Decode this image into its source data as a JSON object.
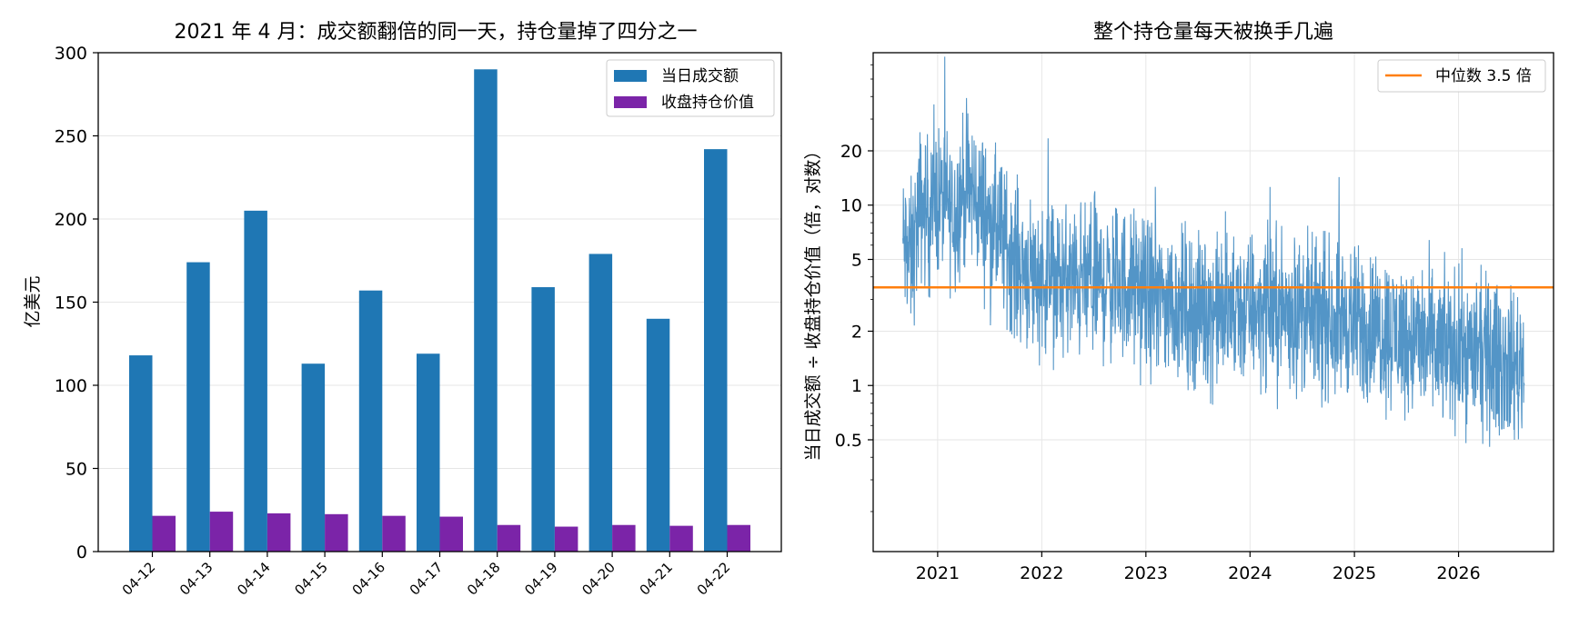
{
  "chart_data": [
    {
      "type": "bar",
      "title": "2021 年 4 月：成交额翻倍的同一天，持仓量掉了四分之一",
      "xlabel": "",
      "ylabel": "亿美元",
      "ylim": [
        0,
        300
      ],
      "yticks": [
        0,
        50,
        100,
        150,
        200,
        250,
        300
      ],
      "categories": [
        "04-12",
        "04-13",
        "04-14",
        "04-15",
        "04-16",
        "04-17",
        "04-18",
        "04-19",
        "04-20",
        "04-21",
        "04-22"
      ],
      "series": [
        {
          "name": "当日成交额",
          "color": "#1f77b4",
          "values": [
            118,
            174,
            205,
            113,
            157,
            119,
            290,
            159,
            179,
            140,
            242
          ]
        },
        {
          "name": "收盘持仓价值",
          "color": "#7b24a8",
          "values": [
            21.5,
            24,
            23,
            22.5,
            21.5,
            21,
            16,
            15,
            16,
            15.5,
            16
          ]
        }
      ],
      "legend": "top-right",
      "grid": "y"
    },
    {
      "type": "line",
      "title": "整个持仓量每天被换手几遍",
      "xlabel": "",
      "ylabel": "当日成交额 ÷ 收盘持仓价值（倍，对数）",
      "yscale": "log",
      "ylim": [
        0.12,
        70
      ],
      "yticks": [
        0.5,
        1,
        2,
        5,
        10,
        20
      ],
      "ytick_labels": [
        "0.5",
        "1",
        "2",
        "5",
        "10",
        "20"
      ],
      "xlim": [
        "2020-05-20",
        "2026-11-30"
      ],
      "xticks": [
        "2021",
        "2022",
        "2023",
        "2024",
        "2025",
        "2026"
      ],
      "series": [
        {
          "name": "",
          "color": "#4a8fc4",
          "points": [
            [
              "2020-09-01",
              6
            ],
            [
              "2020-10-01",
              5
            ],
            [
              "2020-11-01",
              10
            ],
            [
              "2020-12-01",
              9
            ],
            [
              "2021-01-01",
              11
            ],
            [
              "2021-02-01",
              10
            ],
            [
              "2021-03-01",
              9
            ],
            [
              "2021-04-01",
              12
            ],
            [
              "2021-05-01",
              12
            ],
            [
              "2021-06-01",
              10
            ],
            [
              "2021-07-01",
              8
            ],
            [
              "2021-08-01",
              7
            ],
            [
              "2021-09-01",
              6
            ],
            [
              "2021-10-01",
              5
            ],
            [
              "2021-11-01",
              4.5
            ],
            [
              "2021-12-01",
              4.2
            ],
            [
              "2022-01-01",
              4
            ],
            [
              "2022-03-01",
              3.8
            ],
            [
              "2022-05-01",
              3.7
            ],
            [
              "2022-07-01",
              3.8
            ],
            [
              "2022-09-01",
              3.7
            ],
            [
              "2022-11-01",
              3.6
            ],
            [
              "2023-01-01",
              3.2
            ],
            [
              "2023-03-01",
              3
            ],
            [
              "2023-05-01",
              2.8
            ],
            [
              "2023-07-01",
              2.6
            ],
            [
              "2023-09-01",
              2.6
            ],
            [
              "2023-11-01",
              2.5
            ],
            [
              "2024-01-01",
              2.7
            ],
            [
              "2024-03-01",
              2.7
            ],
            [
              "2024-05-01",
              2.6
            ],
            [
              "2024-07-01",
              2.5
            ],
            [
              "2024-09-01",
              2.3
            ],
            [
              "2024-11-01",
              2.4
            ],
            [
              "2025-01-01",
              2.2
            ],
            [
              "2025-03-01",
              2.1
            ],
            [
              "2025-05-01",
              2
            ],
            [
              "2025-07-01",
              1.9
            ],
            [
              "2025-09-01",
              1.7
            ],
            [
              "2025-11-01",
              1.6
            ],
            [
              "2026-01-01",
              1.6
            ],
            [
              "2026-03-01",
              1.5
            ],
            [
              "2026-05-01",
              1.4
            ],
            [
              "2026-07-01",
              1.3
            ],
            [
              "2026-08-20",
              1.3
            ]
          ]
        }
      ],
      "hline": {
        "label": "中位数 3.5 倍",
        "value": 3.5,
        "color": "#ff7f0e"
      },
      "legend": "top-right",
      "grid": "both"
    }
  ]
}
